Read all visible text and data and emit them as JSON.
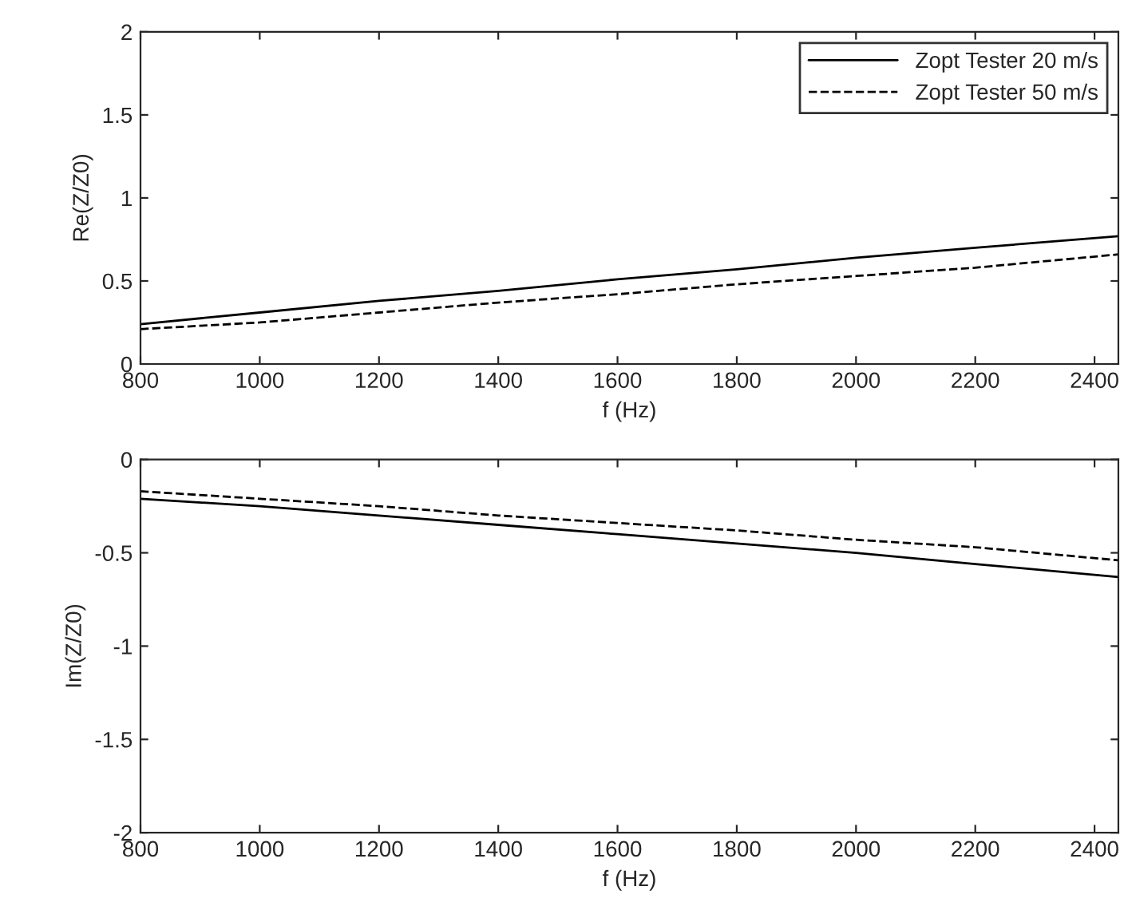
{
  "chart_data": [
    {
      "type": "line",
      "xlabel": "f (Hz)",
      "ylabel": "Re(Z/Z0)",
      "x": [
        800,
        1000,
        1200,
        1400,
        1600,
        1800,
        2000,
        2200,
        2440
      ],
      "series": [
        {
          "name": "Zopt Tester 20 m/s",
          "color": "#000000",
          "line_style": "solid",
          "values": [
            0.24,
            0.31,
            0.38,
            0.44,
            0.51,
            0.57,
            0.64,
            0.7,
            0.77
          ]
        },
        {
          "name": "Zopt Tester 50 m/s",
          "color": "#000000",
          "line_style": "dashed",
          "values": [
            0.21,
            0.25,
            0.31,
            0.37,
            0.42,
            0.48,
            0.53,
            0.58,
            0.66
          ]
        }
      ],
      "xlim": [
        800,
        2440
      ],
      "xticks": [
        800,
        1000,
        1200,
        1400,
        1600,
        1800,
        2000,
        2200,
        2400
      ],
      "ylim": [
        0,
        2
      ],
      "yticks": [
        0,
        0.5,
        1,
        1.5,
        2
      ],
      "legend": "top right",
      "grid": false
    },
    {
      "type": "line",
      "xlabel": "f (Hz)",
      "ylabel": "Im(Z/Z0)",
      "x": [
        800,
        1000,
        1200,
        1400,
        1600,
        1800,
        2000,
        2200,
        2440
      ],
      "series": [
        {
          "color": "#000000",
          "line_style": "solid",
          "values": [
            -0.21,
            -0.25,
            -0.3,
            -0.35,
            -0.4,
            -0.45,
            -0.5,
            -0.56,
            -0.63
          ]
        },
        {
          "color": "#000000",
          "line_style": "dashed",
          "values": [
            -0.17,
            -0.21,
            -0.25,
            -0.3,
            -0.34,
            -0.38,
            -0.43,
            -0.47,
            -0.54
          ]
        }
      ],
      "xlim": [
        800,
        2440
      ],
      "xticks": [
        800,
        1000,
        1200,
        1400,
        1600,
        1800,
        2000,
        2200,
        2400
      ],
      "ylim": [
        -2,
        0
      ],
      "yticks": [
        -2,
        -1.5,
        -1,
        -0.5,
        0
      ],
      "grid": false
    }
  ]
}
